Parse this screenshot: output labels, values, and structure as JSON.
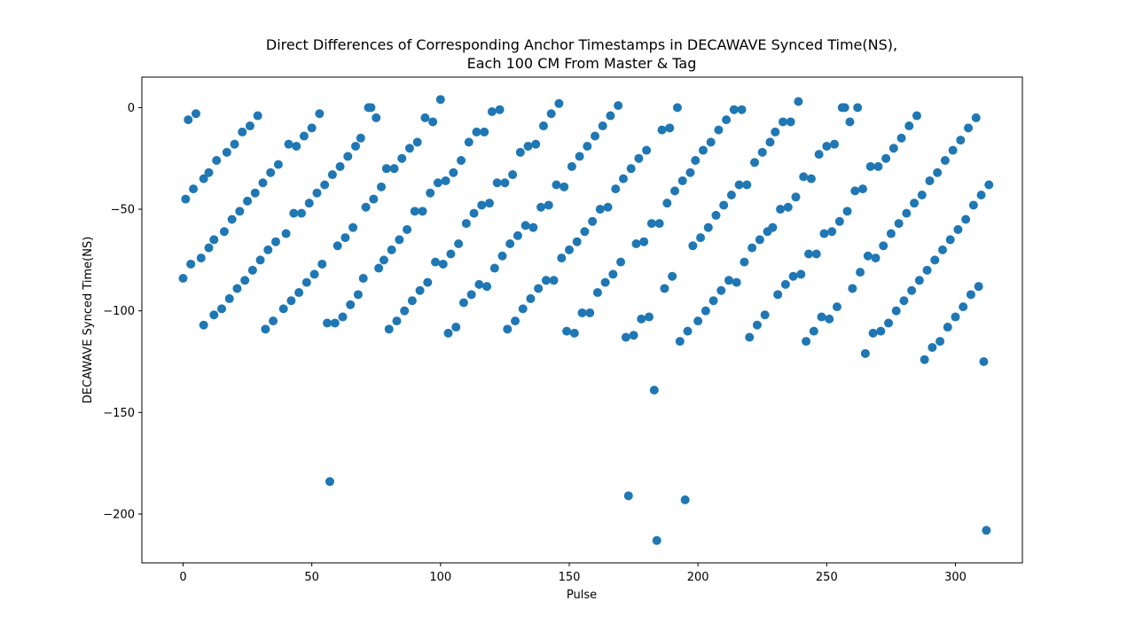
{
  "chart_data": {
    "type": "scatter",
    "title_line1": "Direct Differences of Corresponding Anchor Timestamps in DECAWAVE Synced Time(NS),",
    "title_line2": "Each 100 CM From Master & Tag",
    "xlabel": "Pulse",
    "ylabel": "DECAWAVE Synced Time(NS)",
    "xlim": [
      -16,
      326
    ],
    "ylim": [
      -224,
      15
    ],
    "xticks": [
      0,
      50,
      100,
      150,
      200,
      250,
      300
    ],
    "yticks": [
      0,
      -50,
      -100,
      -150,
      -200
    ],
    "xtick_labels": [
      "0",
      "50",
      "100",
      "150",
      "200",
      "250",
      "300"
    ],
    "ytick_labels": [
      "0",
      "−50",
      "−100",
      "−150",
      "−200"
    ],
    "grid": false,
    "marker_color": "#1f77b4",
    "points": [
      [
        0,
        -84
      ],
      [
        1,
        -45
      ],
      [
        2,
        -6
      ],
      [
        3,
        -77
      ],
      [
        4,
        -40
      ],
      [
        5,
        -3
      ],
      [
        7,
        -74
      ],
      [
        8,
        -35
      ],
      [
        8,
        -107
      ],
      [
        10,
        -69
      ],
      [
        10,
        -32
      ],
      [
        12,
        -102
      ],
      [
        12,
        -65
      ],
      [
        13,
        -26
      ],
      [
        15,
        -99
      ],
      [
        16,
        -61
      ],
      [
        17,
        -22
      ],
      [
        18,
        -94
      ],
      [
        19,
        -55
      ],
      [
        20,
        -18
      ],
      [
        21,
        -89
      ],
      [
        22,
        -51
      ],
      [
        23,
        -12
      ],
      [
        24,
        -85
      ],
      [
        25,
        -46
      ],
      [
        26,
        -9
      ],
      [
        27,
        -80
      ],
      [
        28,
        -42
      ],
      [
        29,
        -4
      ],
      [
        30,
        -75
      ],
      [
        31,
        -37
      ],
      [
        32,
        -109
      ],
      [
        33,
        -70
      ],
      [
        34,
        -32
      ],
      [
        35,
        -105
      ],
      [
        36,
        -66
      ],
      [
        37,
        -28
      ],
      [
        39,
        -99
      ],
      [
        40,
        -62
      ],
      [
        41,
        -18
      ],
      [
        42,
        -95
      ],
      [
        43,
        -52
      ],
      [
        44,
        -19
      ],
      [
        45,
        -91
      ],
      [
        46,
        -52
      ],
      [
        47,
        -14
      ],
      [
        48,
        -86
      ],
      [
        49,
        -47
      ],
      [
        50,
        -10
      ],
      [
        51,
        -82
      ],
      [
        52,
        -42
      ],
      [
        53,
        -3
      ],
      [
        54,
        -77
      ],
      [
        55,
        -38
      ],
      [
        56,
        -106
      ],
      [
        57,
        -184
      ],
      [
        58,
        -33
      ],
      [
        59,
        -106
      ],
      [
        60,
        -68
      ],
      [
        61,
        -29
      ],
      [
        62,
        -103
      ],
      [
        63,
        -64
      ],
      [
        64,
        -24
      ],
      [
        65,
        -97
      ],
      [
        66,
        -59
      ],
      [
        67,
        -19
      ],
      [
        68,
        -92
      ],
      [
        69,
        -15
      ],
      [
        70,
        -84
      ],
      [
        71,
        -49
      ],
      [
        72,
        0
      ],
      [
        73,
        0
      ],
      [
        74,
        -45
      ],
      [
        75,
        -5
      ],
      [
        76,
        -79
      ],
      [
        77,
        -39
      ],
      [
        78,
        -75
      ],
      [
        79,
        -30
      ],
      [
        80,
        -109
      ],
      [
        81,
        -70
      ],
      [
        82,
        -30
      ],
      [
        83,
        -105
      ],
      [
        84,
        -65
      ],
      [
        85,
        -25
      ],
      [
        86,
        -100
      ],
      [
        87,
        -60
      ],
      [
        88,
        -20
      ],
      [
        89,
        -95
      ],
      [
        90,
        -51
      ],
      [
        91,
        -17
      ],
      [
        92,
        -90
      ],
      [
        93,
        -51
      ],
      [
        94,
        -5
      ],
      [
        95,
        -86
      ],
      [
        96,
        -42
      ],
      [
        97,
        -7
      ],
      [
        98,
        -76
      ],
      [
        99,
        -37
      ],
      [
        100,
        4
      ],
      [
        101,
        -77
      ],
      [
        102,
        -36
      ],
      [
        103,
        -111
      ],
      [
        104,
        -72
      ],
      [
        105,
        -32
      ],
      [
        106,
        -108
      ],
      [
        107,
        -67
      ],
      [
        108,
        -26
      ],
      [
        109,
        -96
      ],
      [
        110,
        -57
      ],
      [
        111,
        -17
      ],
      [
        112,
        -92
      ],
      [
        113,
        -52
      ],
      [
        114,
        -12
      ],
      [
        115,
        -87
      ],
      [
        116,
        -48
      ],
      [
        117,
        -12
      ],
      [
        118,
        -88
      ],
      [
        119,
        -47
      ],
      [
        120,
        -2
      ],
      [
        121,
        -79
      ],
      [
        122,
        -37
      ],
      [
        123,
        -1
      ],
      [
        124,
        -73
      ],
      [
        125,
        -37
      ],
      [
        126,
        -109
      ],
      [
        127,
        -67
      ],
      [
        128,
        -33
      ],
      [
        129,
        -105
      ],
      [
        130,
        -63
      ],
      [
        131,
        -22
      ],
      [
        132,
        -99
      ],
      [
        133,
        -58
      ],
      [
        134,
        -19
      ],
      [
        135,
        -94
      ],
      [
        136,
        -59
      ],
      [
        137,
        -18
      ],
      [
        138,
        -89
      ],
      [
        139,
        -49
      ],
      [
        140,
        -9
      ],
      [
        141,
        -85
      ],
      [
        142,
        -48
      ],
      [
        143,
        -3
      ],
      [
        144,
        -85
      ],
      [
        145,
        -38
      ],
      [
        146,
        2
      ],
      [
        147,
        -74
      ],
      [
        148,
        -39
      ],
      [
        149,
        -110
      ],
      [
        150,
        -70
      ],
      [
        151,
        -29
      ],
      [
        152,
        -111
      ],
      [
        153,
        -66
      ],
      [
        154,
        -24
      ],
      [
        155,
        -101
      ],
      [
        156,
        -61
      ],
      [
        157,
        -19
      ],
      [
        158,
        -101
      ],
      [
        159,
        -56
      ],
      [
        160,
        -14
      ],
      [
        161,
        -91
      ],
      [
        162,
        -50
      ],
      [
        163,
        -9
      ],
      [
        164,
        -86
      ],
      [
        165,
        -49
      ],
      [
        166,
        -4
      ],
      [
        167,
        -82
      ],
      [
        168,
        -40
      ],
      [
        169,
        1
      ],
      [
        170,
        -76
      ],
      [
        171,
        -35
      ],
      [
        172,
        -113
      ],
      [
        173,
        -191
      ],
      [
        174,
        -30
      ],
      [
        175,
        -112
      ],
      [
        176,
        -67
      ],
      [
        177,
        -25
      ],
      [
        178,
        -104
      ],
      [
        179,
        -66
      ],
      [
        180,
        -21
      ],
      [
        181,
        -103
      ],
      [
        182,
        -57
      ],
      [
        183,
        -139
      ],
      [
        184,
        -213
      ],
      [
        185,
        -57
      ],
      [
        186,
        -11
      ],
      [
        187,
        -89
      ],
      [
        188,
        -47
      ],
      [
        189,
        -10
      ],
      [
        190,
        -83
      ],
      [
        191,
        -41
      ],
      [
        192,
        0
      ],
      [
        193,
        -115
      ],
      [
        194,
        -36
      ],
      [
        195,
        -193
      ],
      [
        196,
        -110
      ],
      [
        197,
        -32
      ],
      [
        198,
        -68
      ],
      [
        199,
        -26
      ],
      [
        200,
        -105
      ],
      [
        201,
        -64
      ],
      [
        202,
        -21
      ],
      [
        203,
        -100
      ],
      [
        204,
        -59
      ],
      [
        205,
        -17
      ],
      [
        206,
        -95
      ],
      [
        207,
        -53
      ],
      [
        208,
        -11
      ],
      [
        209,
        -90
      ],
      [
        210,
        -48
      ],
      [
        211,
        -6
      ],
      [
        212,
        -85
      ],
      [
        213,
        -43
      ],
      [
        214,
        -1
      ],
      [
        215,
        -86
      ],
      [
        216,
        -38
      ],
      [
        217,
        -1
      ],
      [
        218,
        -76
      ],
      [
        219,
        -38
      ],
      [
        220,
        -113
      ],
      [
        221,
        -69
      ],
      [
        222,
        -27
      ],
      [
        223,
        -107
      ],
      [
        224,
        -65
      ],
      [
        225,
        -22
      ],
      [
        226,
        -102
      ],
      [
        227,
        -61
      ],
      [
        228,
        -17
      ],
      [
        229,
        -59
      ],
      [
        230,
        -12
      ],
      [
        231,
        -92
      ],
      [
        232,
        -50
      ],
      [
        233,
        -7
      ],
      [
        234,
        -87
      ],
      [
        235,
        -49
      ],
      [
        236,
        -7
      ],
      [
        237,
        -83
      ],
      [
        238,
        -44
      ],
      [
        239,
        3
      ],
      [
        240,
        -82
      ],
      [
        241,
        -34
      ],
      [
        242,
        -115
      ],
      [
        243,
        -72
      ],
      [
        244,
        -35
      ],
      [
        245,
        -110
      ],
      [
        246,
        -72
      ],
      [
        247,
        -23
      ],
      [
        248,
        -103
      ],
      [
        249,
        -62
      ],
      [
        250,
        -19
      ],
      [
        251,
        -104
      ],
      [
        252,
        -61
      ],
      [
        253,
        -18
      ],
      [
        254,
        -98
      ],
      [
        255,
        -56
      ],
      [
        256,
        0
      ],
      [
        257,
        0
      ],
      [
        258,
        -51
      ],
      [
        259,
        -7
      ],
      [
        260,
        -89
      ],
      [
        261,
        -41
      ],
      [
        262,
        0
      ],
      [
        263,
        -81
      ],
      [
        264,
        -40
      ],
      [
        265,
        -121
      ],
      [
        266,
        -73
      ],
      [
        267,
        -29
      ],
      [
        268,
        -111
      ],
      [
        269,
        -74
      ],
      [
        270,
        -29
      ],
      [
        271,
        -110
      ],
      [
        272,
        -68
      ],
      [
        273,
        -25
      ],
      [
        274,
        -106
      ],
      [
        275,
        -62
      ],
      [
        276,
        -20
      ],
      [
        277,
        -100
      ],
      [
        278,
        -57
      ],
      [
        279,
        -15
      ],
      [
        280,
        -95
      ],
      [
        281,
        -52
      ],
      [
        282,
        -9
      ],
      [
        283,
        -90
      ],
      [
        284,
        -47
      ],
      [
        285,
        -4
      ],
      [
        286,
        -85
      ],
      [
        287,
        -43
      ],
      [
        288,
        -124
      ],
      [
        289,
        -80
      ],
      [
        290,
        -36
      ],
      [
        291,
        -118
      ],
      [
        292,
        -75
      ],
      [
        293,
        -32
      ],
      [
        294,
        -115
      ],
      [
        295,
        -70
      ],
      [
        296,
        -26
      ],
      [
        297,
        -108
      ],
      [
        298,
        -65
      ],
      [
        299,
        -21
      ],
      [
        300,
        -103
      ],
      [
        301,
        -60
      ],
      [
        302,
        -16
      ],
      [
        303,
        -98
      ],
      [
        304,
        -55
      ],
      [
        305,
        -10
      ],
      [
        306,
        -92
      ],
      [
        307,
        -48
      ],
      [
        308,
        -5
      ],
      [
        309,
        -88
      ],
      [
        310,
        -43
      ],
      [
        311,
        -125
      ],
      [
        312,
        -208
      ],
      [
        313,
        -38
      ]
    ]
  }
}
